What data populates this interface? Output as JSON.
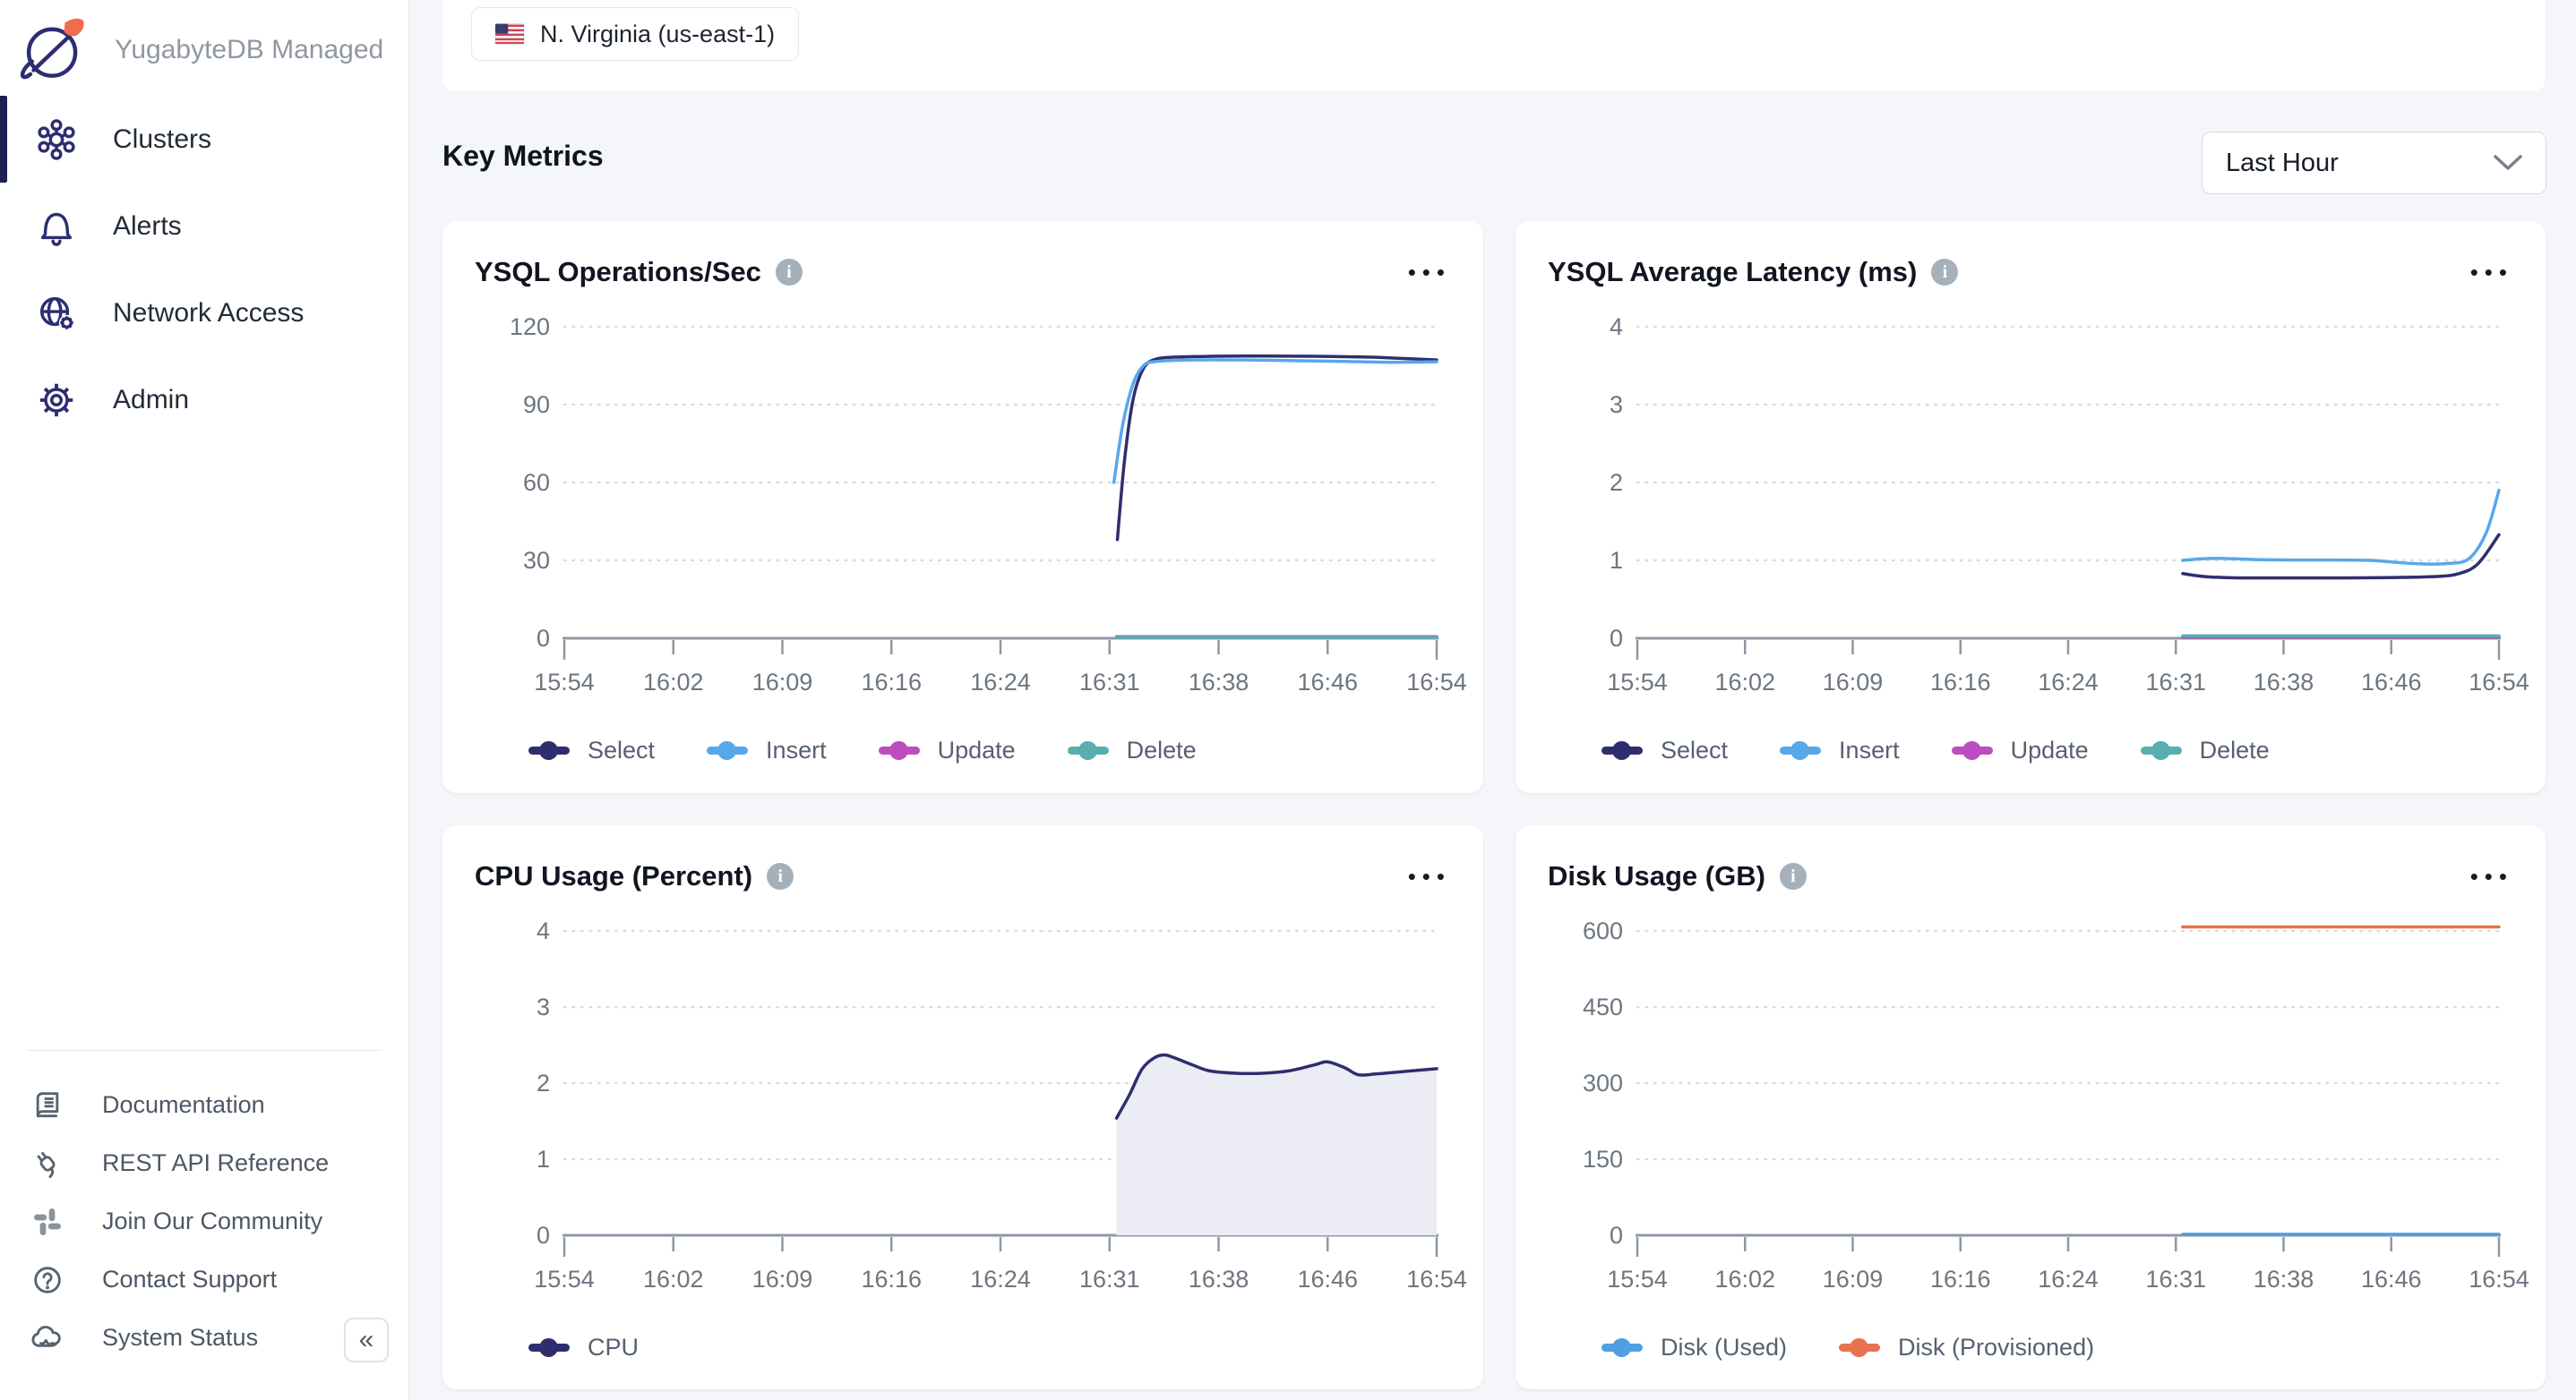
{
  "sidebar": {
    "brand": "YugabyteDB Managed",
    "items": [
      {
        "label": "Clusters",
        "icon": "cluster-hub-icon",
        "active": true
      },
      {
        "label": "Alerts",
        "icon": "bell-icon",
        "active": false
      },
      {
        "label": "Network Access",
        "icon": "globe-gear-icon",
        "active": false
      },
      {
        "label": "Admin",
        "icon": "gear-icon",
        "active": false
      }
    ],
    "footer_items": [
      "Documentation",
      "REST API Reference",
      "Join Our Community",
      "Contact Support",
      "System Status"
    ],
    "footer_icons": [
      "book-icon",
      "plug-icon",
      "slack-icon",
      "question-circle-icon",
      "cloud-status-icon"
    ],
    "collapse_icon": "chevrons-left-icon",
    "collapse_glyph": "«"
  },
  "header": {
    "region_chip": "N. Virginia (us-east-1)",
    "region_flag": "us-flag-icon"
  },
  "page": {
    "title": "Key Metrics",
    "time_range_value": "Last Hour"
  },
  "colors": {
    "accent_indigo": "#2d2d70",
    "select_navy": "#2e2e6e",
    "insert_blue": "#57a8ea",
    "update_magenta": "#bc4cc0",
    "delete_teal": "#58aeae",
    "disk_used_blue": "#4f9fe2",
    "disk_provisioned_orange": "#e8714e",
    "cpu_fill_lavender": "#ebecf4",
    "page_bg": "#f4f6f9",
    "active_nav_bar": "#1c2150"
  },
  "chart_data": [
    {
      "type": "line",
      "title": "YSQL Operations/Sec",
      "x_domain": [
        "15:54",
        "16:54"
      ],
      "xlabels": [
        "15:54",
        "16:02",
        "16:09",
        "16:16",
        "16:24",
        "16:31",
        "16:38",
        "16:46",
        "16:54"
      ],
      "yticks": [
        0,
        30,
        60,
        90,
        120
      ],
      "ylim": [
        0,
        120
      ],
      "grid": "dotted-horizontal",
      "legend_position": "bottom-left",
      "series": [
        {
          "name": "Select",
          "color": "#2e2e6e",
          "points": [
            [
              0.634,
              38
            ],
            [
              0.642,
              68
            ],
            [
              0.652,
              92
            ],
            [
              0.664,
              104
            ],
            [
              0.678,
              107.5
            ],
            [
              0.7,
              108.3
            ],
            [
              0.74,
              108.6
            ],
            [
              0.8,
              108.7
            ],
            [
              0.86,
              108.6
            ],
            [
              0.92,
              108.3
            ],
            [
              0.96,
              107.8
            ],
            [
              1,
              107.2
            ]
          ]
        },
        {
          "name": "Insert",
          "color": "#57a8ea",
          "points": [
            [
              0.63,
              60
            ],
            [
              0.64,
              82
            ],
            [
              0.652,
              98
            ],
            [
              0.664,
              105
            ],
            [
              0.678,
              106.6
            ],
            [
              0.72,
              107.2
            ],
            [
              0.78,
              107.2
            ],
            [
              0.84,
              106.9
            ],
            [
              0.9,
              106.6
            ],
            [
              0.95,
              106.3
            ],
            [
              1,
              106.5
            ]
          ]
        },
        {
          "name": "Update",
          "color": "#bc4cc0",
          "points": [
            [
              0.633,
              0.6
            ],
            [
              0.75,
              0.6
            ],
            [
              0.9,
              0.6
            ],
            [
              1,
              0.6
            ]
          ]
        },
        {
          "name": "Delete",
          "color": "#58aeae",
          "points": [
            [
              0.633,
              0.35
            ],
            [
              0.75,
              0.35
            ],
            [
              0.9,
              0.35
            ],
            [
              1,
              0.35
            ]
          ]
        }
      ]
    },
    {
      "type": "line",
      "title": "YSQL Average Latency (ms)",
      "x_domain": [
        "15:54",
        "16:54"
      ],
      "xlabels": [
        "15:54",
        "16:02",
        "16:09",
        "16:16",
        "16:24",
        "16:31",
        "16:38",
        "16:46",
        "16:54"
      ],
      "yticks": [
        0,
        1,
        2,
        3,
        4
      ],
      "ylim": [
        0,
        4
      ],
      "grid": "dotted-horizontal",
      "legend_position": "bottom-left",
      "series": [
        {
          "name": "Select",
          "color": "#2e2e6e",
          "points": [
            [
              0.633,
              0.83
            ],
            [
              0.66,
              0.79
            ],
            [
              0.7,
              0.775
            ],
            [
              0.76,
              0.775
            ],
            [
              0.82,
              0.775
            ],
            [
              0.88,
              0.78
            ],
            [
              0.92,
              0.79
            ],
            [
              0.95,
              0.82
            ],
            [
              0.975,
              0.95
            ],
            [
              1,
              1.33
            ]
          ]
        },
        {
          "name": "Insert",
          "color": "#57a8ea",
          "points": [
            [
              0.633,
              1.0
            ],
            [
              0.655,
              1.02
            ],
            [
              0.68,
              1.025
            ],
            [
              0.72,
              1.01
            ],
            [
              0.76,
              1.005
            ],
            [
              0.8,
              1.005
            ],
            [
              0.85,
              1.0
            ],
            [
              0.88,
              0.975
            ],
            [
              0.91,
              0.955
            ],
            [
              0.94,
              0.96
            ],
            [
              0.965,
              1.02
            ],
            [
              0.985,
              1.35
            ],
            [
              1,
              1.9
            ]
          ]
        },
        {
          "name": "Update",
          "color": "#bc4cc0",
          "points": [
            [
              0.633,
              0.015
            ],
            [
              0.8,
              0.015
            ],
            [
              1,
              0.015
            ]
          ]
        },
        {
          "name": "Delete",
          "color": "#58aeae",
          "points": [
            [
              0.633,
              0.03
            ],
            [
              0.8,
              0.03
            ],
            [
              1,
              0.03
            ]
          ]
        }
      ]
    },
    {
      "type": "area",
      "title": "CPU Usage (Percent)",
      "x_domain": [
        "15:54",
        "16:54"
      ],
      "xlabels": [
        "15:54",
        "16:02",
        "16:09",
        "16:16",
        "16:24",
        "16:31",
        "16:38",
        "16:46",
        "16:54"
      ],
      "yticks": [
        0,
        1,
        2,
        3,
        4
      ],
      "ylim": [
        0,
        4
      ],
      "grid": "dotted-horizontal",
      "legend_position": "bottom-left",
      "series": [
        {
          "name": "CPU",
          "color": "#2e2e6e",
          "fill": "#ebecf4",
          "points": [
            [
              0.633,
              1.54
            ],
            [
              0.648,
              1.85
            ],
            [
              0.662,
              2.18
            ],
            [
              0.676,
              2.33
            ],
            [
              0.688,
              2.37
            ],
            [
              0.7,
              2.33
            ],
            [
              0.72,
              2.24
            ],
            [
              0.74,
              2.16
            ],
            [
              0.77,
              2.13
            ],
            [
              0.8,
              2.13
            ],
            [
              0.83,
              2.16
            ],
            [
              0.86,
              2.24
            ],
            [
              0.875,
              2.28
            ],
            [
              0.895,
              2.2
            ],
            [
              0.91,
              2.11
            ],
            [
              0.93,
              2.12
            ],
            [
              0.96,
              2.15
            ],
            [
              1,
              2.19
            ]
          ]
        }
      ]
    },
    {
      "type": "line",
      "title": "Disk Usage (GB)",
      "x_domain": [
        "15:54",
        "16:54"
      ],
      "xlabels": [
        "15:54",
        "16:02",
        "16:09",
        "16:16",
        "16:24",
        "16:31",
        "16:38",
        "16:46",
        "16:54"
      ],
      "yticks": [
        0,
        150,
        300,
        450,
        600
      ],
      "ylim": [
        0,
        620
      ],
      "grid": "dotted-horizontal",
      "legend_position": "bottom-left",
      "series": [
        {
          "name": "Disk (Used)",
          "color": "#4f9fe2",
          "points": [
            [
              0.633,
              2
            ],
            [
              0.8,
              2
            ],
            [
              1,
              2
            ]
          ]
        },
        {
          "name": "Disk (Provisioned)",
          "color": "#e8714e",
          "points": [
            [
              0.633,
              608
            ],
            [
              0.8,
              608
            ],
            [
              1,
              608
            ]
          ]
        }
      ]
    }
  ]
}
